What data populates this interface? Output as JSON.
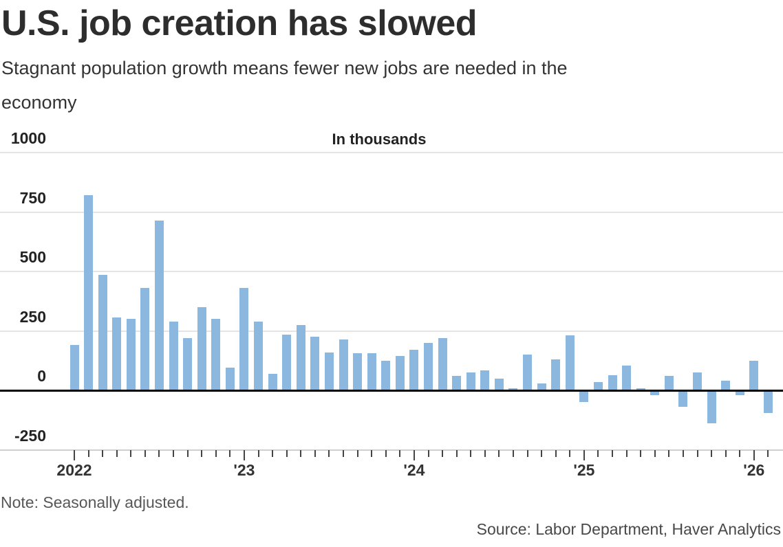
{
  "header": {
    "title": "U.S. job creation has slowed",
    "subtitle_line1": "Stagnant population growth means fewer new jobs are needed in the",
    "subtitle_line2": "economy"
  },
  "chart_data": {
    "type": "bar",
    "title": "U.S. job creation has slowed",
    "subtitle": "Stagnant population growth means fewer new jobs are needed in the economy",
    "unit_label": "In thousands",
    "ylabel": "In thousands",
    "xlabel": "",
    "ylim": [
      -250,
      1000
    ],
    "y_ticks": [
      1000,
      750,
      500,
      250,
      0,
      -250
    ],
    "grid": true,
    "legend": false,
    "bar_color": "#8cb8e0",
    "x_year_labels": [
      "2022",
      "'23",
      "'24",
      "'25",
      "'26"
    ],
    "x": [
      "2022-01",
      "2022-02",
      "2022-03",
      "2022-04",
      "2022-05",
      "2022-06",
      "2022-07",
      "2022-08",
      "2022-09",
      "2022-10",
      "2022-11",
      "2022-12",
      "2023-01",
      "2023-02",
      "2023-03",
      "2023-04",
      "2023-05",
      "2023-06",
      "2023-07",
      "2023-08",
      "2023-09",
      "2023-10",
      "2023-11",
      "2023-12",
      "2024-01",
      "2024-02",
      "2024-03",
      "2024-04",
      "2024-05",
      "2024-06",
      "2024-07",
      "2024-08",
      "2024-09",
      "2024-10",
      "2024-11",
      "2024-12",
      "2025-01",
      "2025-02",
      "2025-03",
      "2025-04",
      "2025-05",
      "2025-06",
      "2025-07",
      "2025-08",
      "2025-09",
      "2025-10",
      "2025-11",
      "2025-12",
      "2026-01",
      "2026-02"
    ],
    "values": [
      190,
      820,
      485,
      305,
      300,
      430,
      715,
      290,
      220,
      350,
      300,
      95,
      430,
      290,
      70,
      235,
      275,
      225,
      160,
      215,
      155,
      155,
      125,
      145,
      170,
      200,
      220,
      60,
      75,
      85,
      50,
      10,
      150,
      30,
      130,
      230,
      -50,
      35,
      65,
      105,
      10,
      -20,
      60,
      -70,
      75,
      -140,
      40,
      -20,
      125,
      -95
    ]
  },
  "footer": {
    "note": "Note: Seasonally adjusted.",
    "source": "Source: Labor Department, Haver Analytics"
  }
}
